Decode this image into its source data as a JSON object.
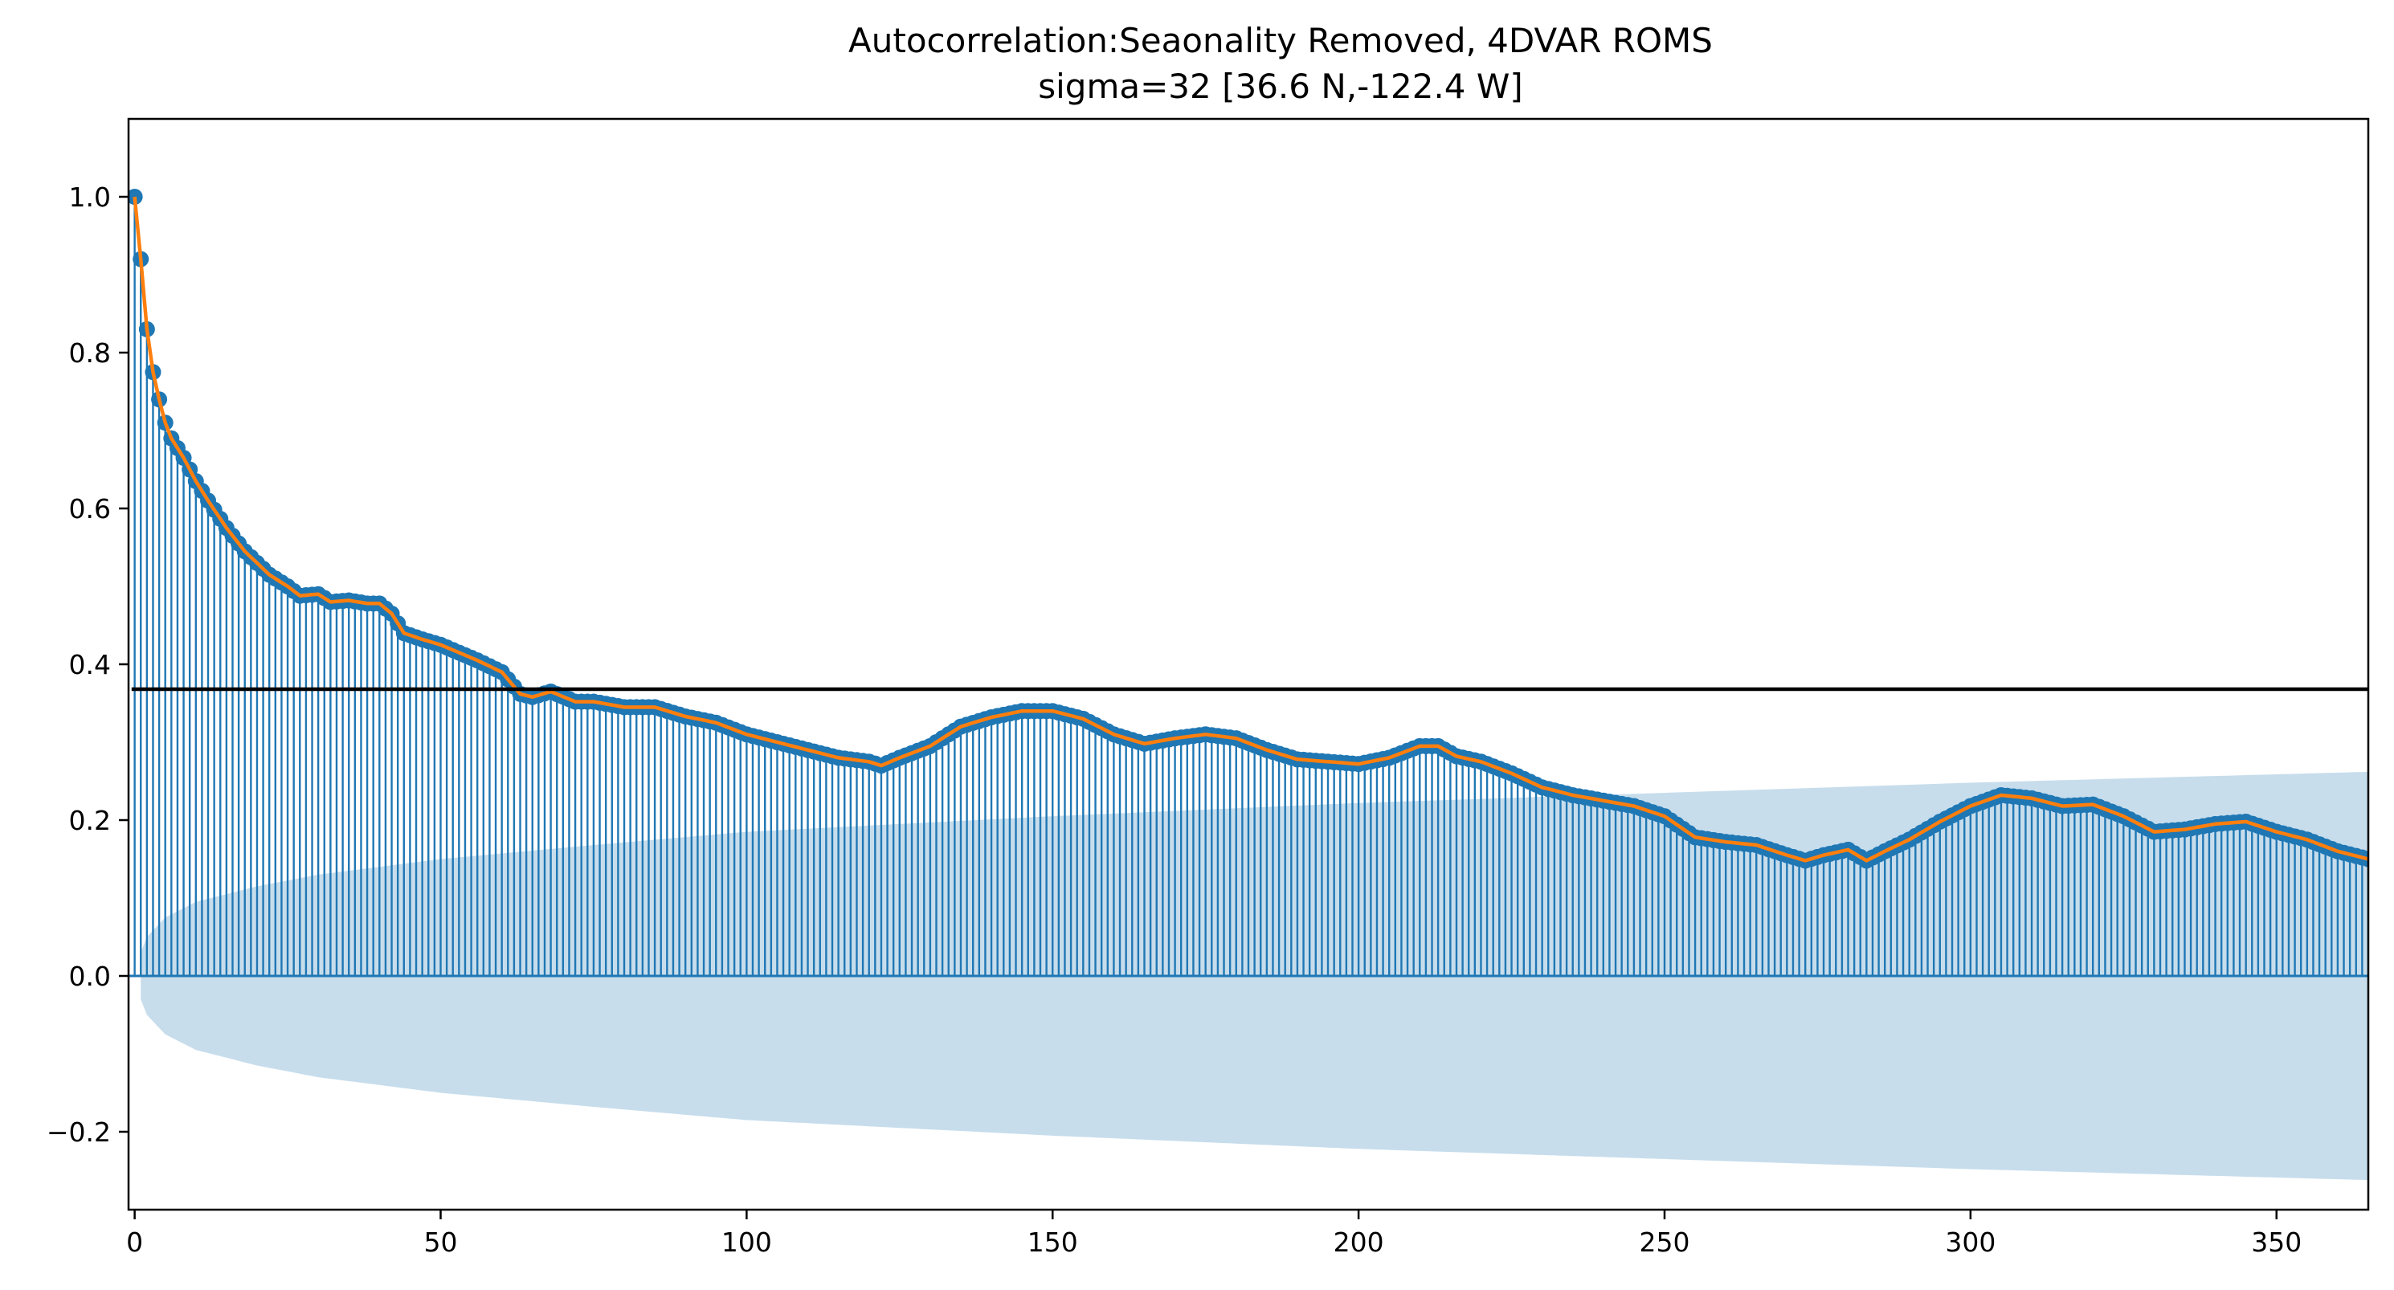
{
  "chart_data": {
    "type": "stem",
    "title": "Autocorrelation:Seaonality Removed, 4DVAR ROMS",
    "subtitle": "sigma=32 [36.6 N,-122.4 W]",
    "xlabel": "",
    "ylabel": "",
    "xlim": [
      -1,
      365
    ],
    "ylim": [
      -0.3,
      1.1
    ],
    "xticks": [
      0,
      50,
      100,
      150,
      200,
      250,
      300,
      350
    ],
    "xtick_labels": [
      "0",
      "50",
      "100",
      "150",
      "200",
      "250",
      "300",
      "350"
    ],
    "yticks": [
      -0.2,
      0.0,
      0.2,
      0.4,
      0.6,
      0.8,
      1.0
    ],
    "ytick_labels": [
      "−0.2",
      "0.0",
      "0.2",
      "0.4",
      "0.6",
      "0.8",
      "1.0"
    ],
    "grid": false,
    "legend": "none",
    "reference_line": 0.368,
    "acf_anchors": [
      [
        0,
        1.0
      ],
      [
        1,
        0.92
      ],
      [
        2,
        0.83
      ],
      [
        3,
        0.775
      ],
      [
        4,
        0.74
      ],
      [
        5,
        0.71
      ],
      [
        6,
        0.69
      ],
      [
        8,
        0.665
      ],
      [
        10,
        0.635
      ],
      [
        12,
        0.61
      ],
      [
        15,
        0.575
      ],
      [
        18,
        0.545
      ],
      [
        20,
        0.53
      ],
      [
        22,
        0.515
      ],
      [
        25,
        0.5
      ],
      [
        27,
        0.488
      ],
      [
        30,
        0.49
      ],
      [
        32,
        0.48
      ],
      [
        35,
        0.482
      ],
      [
        38,
        0.478
      ],
      [
        40,
        0.478
      ],
      [
        42,
        0.465
      ],
      [
        44,
        0.44
      ],
      [
        47,
        0.432
      ],
      [
        50,
        0.425
      ],
      [
        53,
        0.415
      ],
      [
        56,
        0.405
      ],
      [
        60,
        0.39
      ],
      [
        63,
        0.362
      ],
      [
        65,
        0.358
      ],
      [
        68,
        0.365
      ],
      [
        72,
        0.352
      ],
      [
        75,
        0.352
      ],
      [
        80,
        0.345
      ],
      [
        85,
        0.345
      ],
      [
        90,
        0.333
      ],
      [
        95,
        0.325
      ],
      [
        100,
        0.31
      ],
      [
        105,
        0.3
      ],
      [
        110,
        0.29
      ],
      [
        115,
        0.28
      ],
      [
        120,
        0.275
      ],
      [
        122,
        0.27
      ],
      [
        125,
        0.28
      ],
      [
        130,
        0.295
      ],
      [
        135,
        0.32
      ],
      [
        140,
        0.332
      ],
      [
        145,
        0.34
      ],
      [
        150,
        0.34
      ],
      [
        155,
        0.33
      ],
      [
        160,
        0.31
      ],
      [
        165,
        0.298
      ],
      [
        170,
        0.305
      ],
      [
        175,
        0.31
      ],
      [
        180,
        0.305
      ],
      [
        185,
        0.29
      ],
      [
        190,
        0.278
      ],
      [
        195,
        0.275
      ],
      [
        200,
        0.272
      ],
      [
        205,
        0.28
      ],
      [
        210,
        0.295
      ],
      [
        213,
        0.295
      ],
      [
        216,
        0.282
      ],
      [
        220,
        0.275
      ],
      [
        225,
        0.26
      ],
      [
        230,
        0.242
      ],
      [
        235,
        0.232
      ],
      [
        240,
        0.225
      ],
      [
        245,
        0.218
      ],
      [
        250,
        0.205
      ],
      [
        255,
        0.178
      ],
      [
        260,
        0.172
      ],
      [
        265,
        0.168
      ],
      [
        270,
        0.155
      ],
      [
        273,
        0.148
      ],
      [
        276,
        0.155
      ],
      [
        280,
        0.162
      ],
      [
        283,
        0.148
      ],
      [
        286,
        0.16
      ],
      [
        290,
        0.175
      ],
      [
        295,
        0.198
      ],
      [
        300,
        0.218
      ],
      [
        305,
        0.232
      ],
      [
        310,
        0.228
      ],
      [
        315,
        0.218
      ],
      [
        320,
        0.22
      ],
      [
        325,
        0.205
      ],
      [
        330,
        0.185
      ],
      [
        335,
        0.188
      ],
      [
        340,
        0.195
      ],
      [
        345,
        0.198
      ],
      [
        350,
        0.185
      ],
      [
        355,
        0.175
      ],
      [
        360,
        0.16
      ],
      [
        365,
        0.15
      ]
    ],
    "confidence_band_anchors": [
      [
        1,
        0.03
      ],
      [
        2,
        0.05
      ],
      [
        5,
        0.075
      ],
      [
        10,
        0.095
      ],
      [
        20,
        0.115
      ],
      [
        30,
        0.13
      ],
      [
        50,
        0.15
      ],
      [
        75,
        0.168
      ],
      [
        100,
        0.185
      ],
      [
        150,
        0.205
      ],
      [
        200,
        0.222
      ],
      [
        250,
        0.235
      ],
      [
        300,
        0.248
      ],
      [
        365,
        0.262
      ]
    ]
  }
}
